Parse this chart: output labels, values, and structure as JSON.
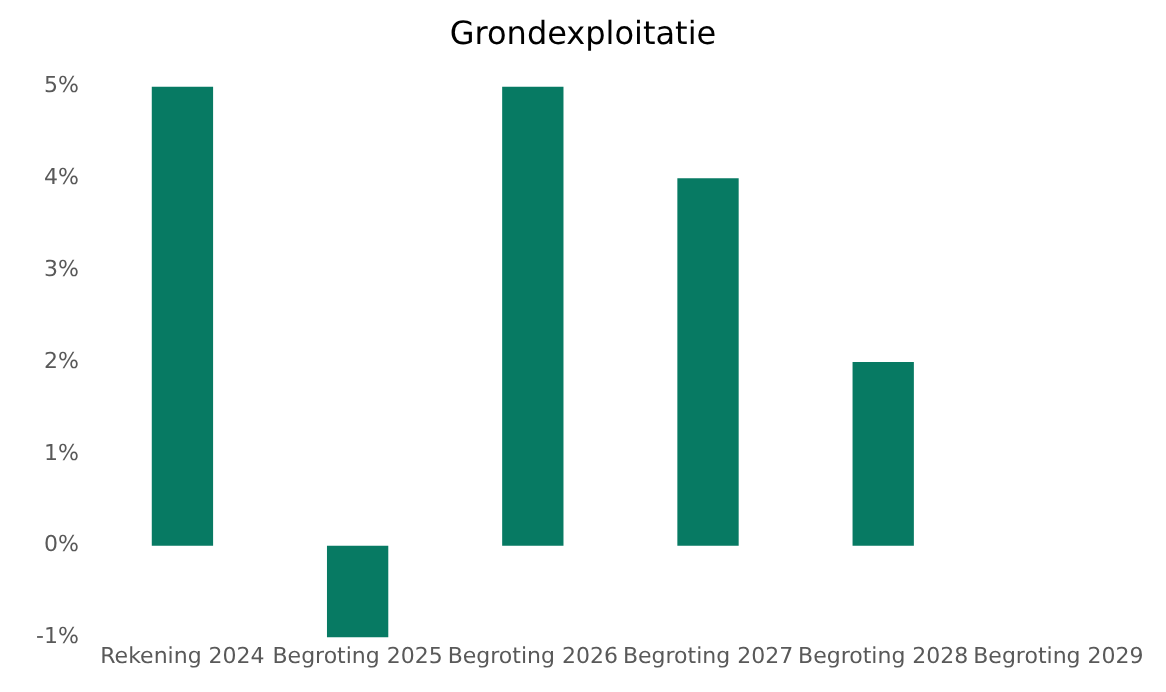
{
  "chart_data": {
    "type": "bar",
    "title": "Grondexploitatie",
    "categories": [
      "Rekening 2024",
      "Begroting 2025",
      "Begroting 2026",
      "Begroting 2027",
      "Begroting 2028",
      "Begroting 2029"
    ],
    "values": [
      5,
      -1,
      5,
      4,
      2,
      0
    ],
    "color": "#077a63",
    "ylim": [
      -1,
      5
    ],
    "yticks": [
      {
        "value": -1,
        "label": "-1%"
      },
      {
        "value": 0,
        "label": "0%"
      },
      {
        "value": 1,
        "label": "1%"
      },
      {
        "value": 2,
        "label": "2%"
      },
      {
        "value": 3,
        "label": "3%"
      },
      {
        "value": 4,
        "label": "4%"
      },
      {
        "value": 5,
        "label": "5%"
      }
    ],
    "grid": false,
    "legend": false
  }
}
